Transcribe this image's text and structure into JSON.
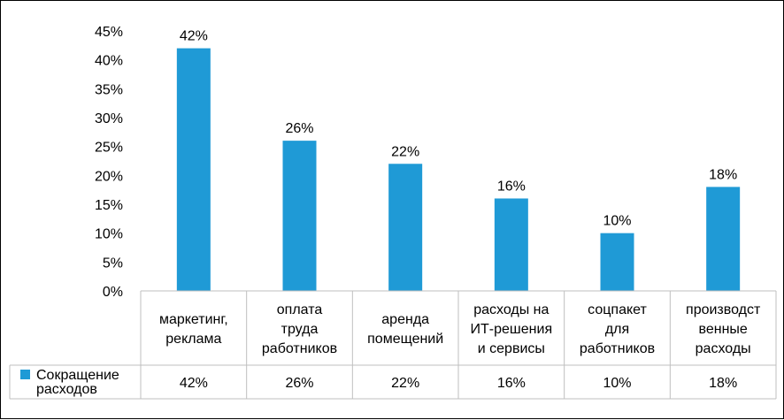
{
  "chart_data": {
    "type": "bar",
    "categories": [
      [
        "маркетинг,",
        "реклама"
      ],
      [
        "оплата",
        "труда",
        "работников"
      ],
      [
        "аренда",
        "помещений"
      ],
      [
        "расходы на",
        "ИТ-решения",
        "и сервисы"
      ],
      [
        "соцпакет",
        "для",
        "работников"
      ],
      [
        "производст",
        "венные",
        "расходы"
      ]
    ],
    "series": [
      {
        "name": [
          "Сокращение",
          "расходов"
        ],
        "values": [
          42,
          26,
          22,
          16,
          10,
          18
        ],
        "labels": [
          "42%",
          "26%",
          "22%",
          "16%",
          "10%",
          "18%"
        ]
      }
    ],
    "ylim": [
      0,
      45
    ],
    "yticks": [
      0,
      5,
      10,
      15,
      20,
      25,
      30,
      35,
      40,
      45
    ],
    "ytick_labels": [
      "0%",
      "5%",
      "10%",
      "15%",
      "20%",
      "25%",
      "30%",
      "35%",
      "40%",
      "45%"
    ],
    "grid": false,
    "legend": "data table, left",
    "bar_color": "#1f9ad6"
  }
}
